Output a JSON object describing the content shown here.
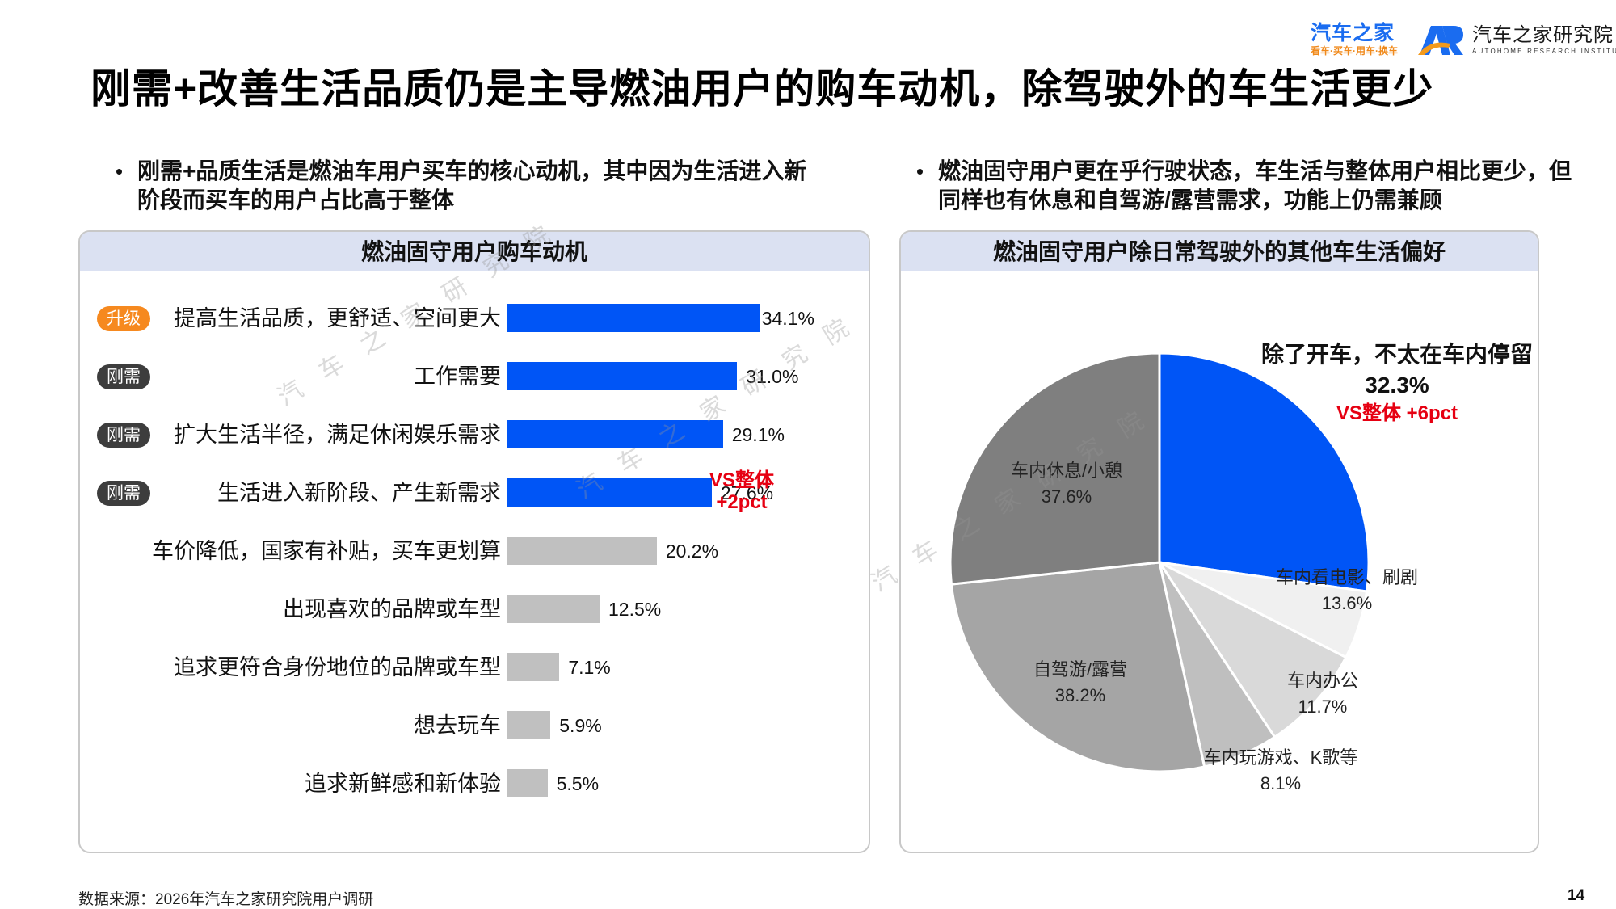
{
  "header": {
    "brand_logo": {
      "name": "汽车之家",
      "tagline": "看车·买车·用车·换车"
    },
    "institute_logo": {
      "mark": "AR",
      "name": "汽车之家研究院",
      "english": "AUTOHOME RESEARCH INSTITUTE"
    },
    "title": "刚需+改善生活品质仍是主导燃油用户的购车动机，除驾驶外的车生活更少"
  },
  "bullets": {
    "left": "刚需+品质生活是燃油车用户买车的核心动机，其中因为生活进入新阶段而买车的用户占比高于整体",
    "right": "燃油固守用户更在乎行驶状态，车生活与整体用户相比更少，但同样也有休息和自驾游/露营需求，功能上仍需兼顾"
  },
  "watermark": "汽车之家研究院",
  "left_panel": {
    "title": "燃油固守用户购车动机",
    "annotation": {
      "line1": "VS整体",
      "line2": "+2pct"
    }
  },
  "right_panel": {
    "title": "燃油固守用户除日常驾驶外的其他车生活偏好",
    "callout": {
      "title": "除了开车，不太在车内停留",
      "value": "32.3%",
      "delta": "VS整体 +6pct"
    }
  },
  "colors": {
    "highlight_blue": "#0055f6",
    "neutral_gray": "#c0c0c0",
    "badge_upgrade": "#f6891f",
    "badge_rigid": "#3d3d3d",
    "accent_red": "#e60012",
    "panel_header": "#dbe1f2"
  },
  "chart_data": [
    {
      "type": "bar",
      "orientation": "horizontal",
      "title": "燃油固守用户购车动机",
      "xlabel": "",
      "ylabel": "",
      "grid": false,
      "categories": [
        "提高生活品质，更舒适、空间更大",
        "工作需要",
        "扩大生活半径，满足休闲娱乐需求",
        "生活进入新阶段、产生新需求",
        "车价降低，国家有补贴，买车更划算",
        "出现喜欢的品牌或车型",
        "追求更符合身份地位的品牌或车型",
        "想去玩车",
        "追求新鲜感和新体验"
      ],
      "values": [
        34.1,
        31.0,
        29.1,
        27.6,
        20.2,
        12.5,
        7.1,
        5.9,
        5.5
      ],
      "value_labels": [
        "34.1%",
        "31.0%",
        "29.1%",
        "27.6%",
        "20.2%",
        "12.5%",
        "7.1%",
        "5.9%",
        "5.5%"
      ],
      "badges": [
        "升级",
        "刚需",
        "刚需",
        "刚需",
        "",
        "",
        "",
        "",
        ""
      ],
      "highlighted": [
        true,
        true,
        true,
        true,
        false,
        false,
        false,
        false,
        false
      ],
      "annotations": [
        {
          "category": "生活进入新阶段、产生新需求",
          "text": "VS整体 +2pct"
        }
      ],
      "unit": "%"
    },
    {
      "type": "pie",
      "title": "燃油固守用户除日常驾驶外的其他车生活偏好",
      "slices": [
        {
          "label": "除了开车，不太在车内停留",
          "value": 32.3,
          "value_label": "32.3%",
          "color": "#0055f6",
          "start_deg": 0,
          "end_deg": 98,
          "note": "VS整体 +6pct"
        },
        {
          "label": "车内看电影、刷剧",
          "value": 13.6,
          "value_label": "13.6%",
          "color": "#f0f0f0",
          "start_deg": 98,
          "end_deg": 117
        },
        {
          "label": "车内办公",
          "value": 11.7,
          "value_label": "11.7%",
          "color": "#d9d9d9",
          "start_deg": 117,
          "end_deg": 146.6
        },
        {
          "label": "车内玩游戏、K歌等",
          "value": 8.1,
          "value_label": "8.1%",
          "color": "#bfbfbf",
          "start_deg": 146.6,
          "end_deg": 167.6
        },
        {
          "label": "自驾游/露营",
          "value": 38.2,
          "value_label": "38.2%",
          "color": "#a5a5a5",
          "start_deg": 167.6,
          "end_deg": 264
        },
        {
          "label": "车内休息/小憩",
          "value": 37.6,
          "value_label": "37.6%",
          "color": "#7f7f7f",
          "start_deg": 264,
          "end_deg": 360
        }
      ],
      "unit": "%"
    }
  ],
  "footer": {
    "source": "数据来源：2026年汽车之家研究院用户调研",
    "page_number": "14"
  }
}
